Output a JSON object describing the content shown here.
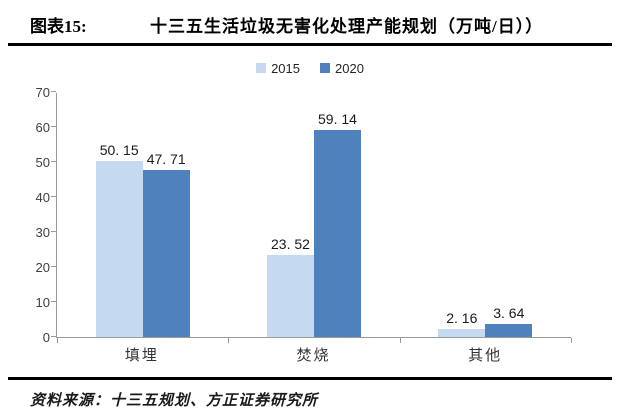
{
  "header": {
    "figure_label": "图表15:",
    "title": "十三五生活垃圾无害化处理产能规划（万吨/日））"
  },
  "legend": [
    {
      "label": "2015",
      "color": "#C5D9F1"
    },
    {
      "label": "2020",
      "color": "#4F81BD"
    }
  ],
  "chart_data": {
    "type": "bar",
    "title": "十三五生活垃圾无害化处理产能规划（万吨/日））",
    "categories": [
      "填埋",
      "焚烧",
      "其他"
    ],
    "series": [
      {
        "name": "2015",
        "color": "#C5D9F1",
        "values": [
          50.15,
          23.52,
          2.16
        ],
        "labels": [
          "50. 15",
          "23. 52",
          "2. 16"
        ]
      },
      {
        "name": "2020",
        "color": "#4F81BD",
        "values": [
          47.71,
          59.14,
          3.64
        ],
        "labels": [
          "47. 71",
          "59. 14",
          "3. 64"
        ]
      }
    ],
    "xlabel": "",
    "ylabel": "",
    "ylim": [
      0,
      70
    ],
    "yticks": [
      0,
      10,
      20,
      30,
      40,
      50,
      60,
      70
    ],
    "grid": false,
    "legend_position": "top",
    "axis_color": "#9a9a9a"
  },
  "source": "资料来源：十三五规划、方正证券研究所"
}
